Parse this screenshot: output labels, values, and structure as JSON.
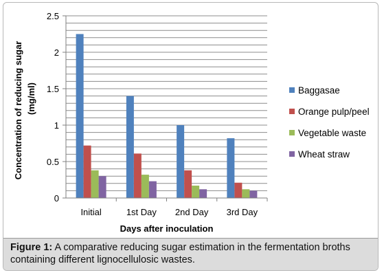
{
  "chart_data": {
    "type": "bar",
    "categories": [
      "Initial",
      "1st Day",
      "2nd Day",
      "3rd Day"
    ],
    "series": [
      {
        "name": "Baggasae",
        "values": [
          2.25,
          1.4,
          1.0,
          0.82
        ],
        "color": "#4f81bd"
      },
      {
        "name": "Orange pulp/peel",
        "values": [
          0.72,
          0.61,
          0.38,
          0.21
        ],
        "color": "#c0504d"
      },
      {
        "name": "Vegetable waste",
        "values": [
          0.38,
          0.32,
          0.17,
          0.12
        ],
        "color": "#9bbb59"
      },
      {
        "name": "Wheat straw",
        "values": [
          0.3,
          0.23,
          0.12,
          0.1
        ],
        "color": "#8064a2"
      }
    ],
    "xlabel": "Days after inoculation",
    "ylabel_line1": "Concentration of reducing sugar",
    "ylabel_line2": "(mg/ml)",
    "ylim": [
      0,
      2.5
    ],
    "yticks": [
      "0",
      "0.5",
      "1",
      "1.5",
      "2",
      "2.5"
    ],
    "ytick_values": [
      0,
      0.5,
      1,
      1.5,
      2,
      2.5
    ],
    "grid": true,
    "legend_position": "right"
  },
  "caption": {
    "label": "Figure 1:",
    "text": " A comparative reducing sugar estimation in the fermentation broths containing different lignocellulosic wastes."
  }
}
